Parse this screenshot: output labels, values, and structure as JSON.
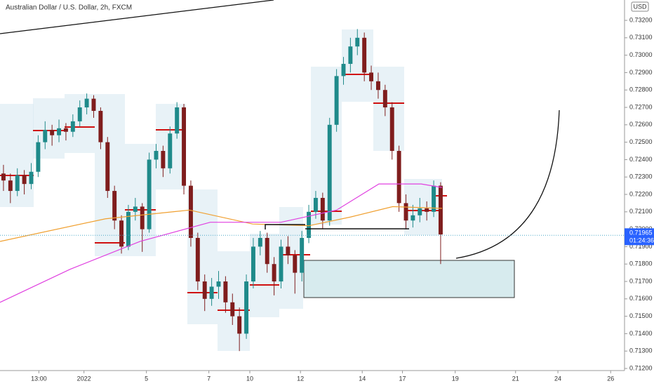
{
  "chart_data": {
    "type": "candlestick",
    "title": "Australian Dollar / U.S. Dollar, 2h, FXCM",
    "currency": "USD",
    "up_color": "#1f8a8a",
    "down_color": "#7f1d1d",
    "xlim": [
      -0.5,
      89.5
    ],
    "ylim": [
      0.71188,
      0.73317
    ],
    "xticks": [
      {
        "value": 5.1,
        "label": "13:00"
      },
      {
        "value": 11.6,
        "label": "2022"
      },
      {
        "value": 20.6,
        "label": "5"
      },
      {
        "value": 29.6,
        "label": "7"
      },
      {
        "value": 35.5,
        "label": "10"
      },
      {
        "value": 42.8,
        "label": "12"
      },
      {
        "value": 51.7,
        "label": "14"
      },
      {
        "value": 57.5,
        "label": "17"
      },
      {
        "value": 65.1,
        "label": "19"
      },
      {
        "value": 73.8,
        "label": "21"
      },
      {
        "value": 79.9,
        "label": "24"
      },
      {
        "value": 87.5,
        "label": "26"
      }
    ],
    "yticks": [
      {
        "value": 0.732,
        "label": "0.73200"
      },
      {
        "value": 0.731,
        "label": "0.73100"
      },
      {
        "value": 0.73,
        "label": "0.73000"
      },
      {
        "value": 0.729,
        "label": "0.72900"
      },
      {
        "value": 0.728,
        "label": "0.72800"
      },
      {
        "value": 0.727,
        "label": "0.72700"
      },
      {
        "value": 0.726,
        "label": "0.72600"
      },
      {
        "value": 0.725,
        "label": "0.72500"
      },
      {
        "value": 0.724,
        "label": "0.72400"
      },
      {
        "value": 0.723,
        "label": "0.72300"
      },
      {
        "value": 0.722,
        "label": "0.72200"
      },
      {
        "value": 0.721,
        "label": "0.72100"
      },
      {
        "value": 0.72,
        "label": "0.72000"
      },
      {
        "value": 0.719,
        "label": "0.71900"
      },
      {
        "value": 0.718,
        "label": "0.71800"
      },
      {
        "value": 0.717,
        "label": "0.71700"
      },
      {
        "value": 0.716,
        "label": "0.71600"
      },
      {
        "value": 0.715,
        "label": "0.71500"
      },
      {
        "value": 0.714,
        "label": "0.71400"
      },
      {
        "value": 0.713,
        "label": "0.71300"
      },
      {
        "value": 0.712,
        "label": "0.71200"
      }
    ],
    "last_price": {
      "value": 0.71965,
      "label": "0.71965"
    },
    "countdown": "01:24:36",
    "ohlc": [
      [
        0.7232,
        0.7237,
        0.7222,
        0.7228
      ],
      [
        0.7228,
        0.7232,
        0.7215,
        0.7222
      ],
      [
        0.7222,
        0.7235,
        0.7219,
        0.7231
      ],
      [
        0.7231,
        0.7234,
        0.722,
        0.7226
      ],
      [
        0.7226,
        0.7238,
        0.7223,
        0.7233
      ],
      [
        0.7233,
        0.7254,
        0.723,
        0.725
      ],
      [
        0.725,
        0.7262,
        0.7246,
        0.7257
      ],
      [
        0.7257,
        0.726,
        0.7248,
        0.7254
      ],
      [
        0.7254,
        0.7263,
        0.725,
        0.7258
      ],
      [
        0.7258,
        0.7261,
        0.7251,
        0.7256
      ],
      [
        0.7256,
        0.7266,
        0.7253,
        0.7262
      ],
      [
        0.7262,
        0.7274,
        0.7259,
        0.727
      ],
      [
        0.727,
        0.7278,
        0.7266,
        0.7275
      ],
      [
        0.7275,
        0.7277,
        0.7264,
        0.7268
      ],
      [
        0.7268,
        0.727,
        0.7246,
        0.725
      ],
      [
        0.725,
        0.7253,
        0.7218,
        0.7222
      ],
      [
        0.7222,
        0.7225,
        0.72,
        0.7205
      ],
      [
        0.7205,
        0.7208,
        0.7186,
        0.719
      ],
      [
        0.719,
        0.7214,
        0.7188,
        0.721
      ],
      [
        0.721,
        0.7218,
        0.7205,
        0.7213
      ],
      [
        0.7213,
        0.7215,
        0.7187,
        0.72
      ],
      [
        0.72,
        0.7244,
        0.7198,
        0.724
      ],
      [
        0.724,
        0.7249,
        0.7235,
        0.7245
      ],
      [
        0.7245,
        0.7248,
        0.723,
        0.7235
      ],
      [
        0.7235,
        0.7259,
        0.7232,
        0.7255
      ],
      [
        0.7255,
        0.7273,
        0.7252,
        0.727
      ],
      [
        0.727,
        0.7272,
        0.722,
        0.7225
      ],
      [
        0.7225,
        0.7228,
        0.719,
        0.7195
      ],
      [
        0.7195,
        0.7198,
        0.7165,
        0.717
      ],
      [
        0.717,
        0.7174,
        0.7153,
        0.716
      ],
      [
        0.716,
        0.7172,
        0.7156,
        0.7167
      ],
      [
        0.7167,
        0.7176,
        0.716,
        0.717
      ],
      [
        0.717,
        0.7173,
        0.7152,
        0.7158
      ],
      [
        0.7158,
        0.7163,
        0.7145,
        0.715
      ],
      [
        0.715,
        0.7155,
        0.713,
        0.714
      ],
      [
        0.714,
        0.7174,
        0.7137,
        0.717
      ],
      [
        0.717,
        0.7195,
        0.7166,
        0.719
      ],
      [
        0.719,
        0.7199,
        0.7185,
        0.7195
      ],
      [
        0.7195,
        0.7198,
        0.7175,
        0.718
      ],
      [
        0.718,
        0.7184,
        0.7162,
        0.717
      ],
      [
        0.717,
        0.7194,
        0.7166,
        0.719
      ],
      [
        0.719,
        0.7196,
        0.718,
        0.7185
      ],
      [
        0.7185,
        0.7188,
        0.7163,
        0.7175
      ],
      [
        0.7175,
        0.7199,
        0.717,
        0.7195
      ],
      [
        0.7195,
        0.7214,
        0.7192,
        0.721
      ],
      [
        0.721,
        0.7222,
        0.7206,
        0.7218
      ],
      [
        0.7218,
        0.7221,
        0.72,
        0.7205
      ],
      [
        0.7205,
        0.7264,
        0.7202,
        0.726
      ],
      [
        0.726,
        0.7292,
        0.7256,
        0.7288
      ],
      [
        0.7288,
        0.7299,
        0.7283,
        0.7295
      ],
      [
        0.7295,
        0.731,
        0.729,
        0.7305
      ],
      [
        0.7305,
        0.7315,
        0.73,
        0.731
      ],
      [
        0.731,
        0.7313,
        0.7285,
        0.729
      ],
      [
        0.729,
        0.7294,
        0.728,
        0.7285
      ],
      [
        0.7285,
        0.729,
        0.7275,
        0.728
      ],
      [
        0.728,
        0.7283,
        0.7265,
        0.727
      ],
      [
        0.727,
        0.7273,
        0.724,
        0.7245
      ],
      [
        0.7245,
        0.7248,
        0.721,
        0.7215
      ],
      [
        0.7215,
        0.722,
        0.72,
        0.7205
      ],
      [
        0.7205,
        0.7214,
        0.7201,
        0.7208
      ],
      [
        0.7208,
        0.7218,
        0.7204,
        0.7212
      ],
      [
        0.7212,
        0.7216,
        0.7205,
        0.721
      ],
      [
        0.721,
        0.7228,
        0.7207,
        0.7225
      ],
      [
        0.7225,
        0.7227,
        0.718,
        0.7197
      ]
    ],
    "lines": [
      {
        "color": "#f0a030",
        "x": [
          -0.5,
          14.7,
          26.8,
          35.9,
          44,
          50,
          56.1,
          63.2
        ],
        "values": [
          0.7193,
          0.7206,
          0.7211,
          0.7203,
          0.7202,
          0.7207,
          0.7213,
          0.7212
        ]
      },
      {
        "color": "#e040e0",
        "x": [
          -0.5,
          9.6,
          19.7,
          29.8,
          40,
          48,
          54.1,
          60.2,
          63.2
        ],
        "values": [
          0.7158,
          0.7177,
          0.7193,
          0.7204,
          0.7204,
          0.7211,
          0.7226,
          0.7226,
          0.7224
        ]
      }
    ]
  }
}
